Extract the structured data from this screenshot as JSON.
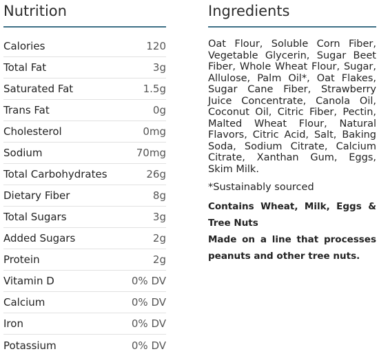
{
  "nutrition": {
    "title": "Nutrition",
    "rows": [
      {
        "label": "Calories",
        "value": "120"
      },
      {
        "label": "Total Fat",
        "value": "3g"
      },
      {
        "label": "Saturated Fat",
        "value": "1.5g"
      },
      {
        "label": "Trans Fat",
        "value": "0g"
      },
      {
        "label": "Cholesterol",
        "value": "0mg"
      },
      {
        "label": "Sodium",
        "value": "70mg"
      },
      {
        "label": "Total Carbohydrates",
        "value": "26g"
      },
      {
        "label": "Dietary Fiber",
        "value": "8g"
      },
      {
        "label": "Total Sugars",
        "value": "3g"
      },
      {
        "label": "Added Sugars",
        "value": "2g"
      },
      {
        "label": "Protein",
        "value": "2g"
      },
      {
        "label": "Vitamin D",
        "value": "0% DV"
      },
      {
        "label": "Calcium",
        "value": "0% DV"
      },
      {
        "label": "Iron",
        "value": "0% DV"
      },
      {
        "label": "Potassium",
        "value": "0% DV"
      }
    ]
  },
  "ingredients": {
    "title": "Ingredients",
    "text": "Oat Flour, Soluble Corn Fiber, Vegetable Glycerin, Sugar Beet Fiber, Whole Wheat Flour, Sugar, Allulose, Palm Oil*, Oat Flakes, Sugar Cane Fiber, Strawberry Juice Concentrate, Canola Oil, Coconut Oil, Citric Fiber, Pectin, Malted Wheat Flour, Natural Flavors, Citric Acid, Salt, Baking Soda, Sodium Citrate, Calcium Citrate, Xanthan Gum, Eggs, Skim Milk.",
    "note": "*Sustainably sourced",
    "allergen": "Contains Wheat, Milk, Eggs & Tree Nuts",
    "facility": "Made on a line that processes peanuts and other tree nuts."
  },
  "colors": {
    "divider_accent": "#3d6f86"
  }
}
